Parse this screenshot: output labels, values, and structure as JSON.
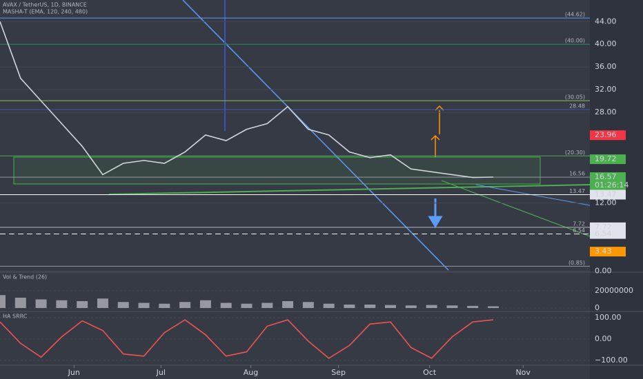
{
  "chart_data": [
    {
      "type": "line",
      "title": "AVAX / TetherUS, 1D, BINANCE",
      "subtitle": "MASHA-T (EMA, 120, 240, 480)",
      "x": [
        0,
        1,
        2,
        3,
        4,
        5,
        6,
        7,
        8,
        9,
        10,
        11,
        12,
        13,
        14,
        15,
        16,
        17,
        18,
        19,
        20,
        21,
        22,
        23,
        24
      ],
      "series": [
        {
          "name": "AVAX",
          "color": "#d1d4dc",
          "values": [
            44,
            34,
            30,
            26,
            22,
            17,
            19,
            19.5,
            19,
            21,
            24,
            23,
            25,
            26,
            29,
            25,
            24,
            21,
            20,
            20.5,
            18,
            17.5,
            17,
            16.5,
            16.57
          ]
        }
      ],
      "xlim": [
        0,
        28.7
      ],
      "ylim": [
        -0.2,
        47.8
      ],
      "yticks": [
        {
          "value": 44,
          "label": "44.00"
        },
        {
          "value": 40,
          "label": "40.00"
        },
        {
          "value": 36,
          "label": "36.00"
        },
        {
          "value": 32,
          "label": "32.00"
        },
        {
          "value": 28,
          "label": "28.00"
        },
        {
          "value": 12,
          "label": "12.00"
        },
        {
          "value": 0,
          "label": "0.00"
        }
      ],
      "levels": [
        {
          "value": 44.62,
          "label": "(44.62)",
          "color": "#5b9cf6"
        },
        {
          "value": 40,
          "label": "(40.00)",
          "color": "#1e8a5a"
        },
        {
          "value": 30.05,
          "label": "(30.05)",
          "color": "#8bc34a"
        },
        {
          "value": 28.48,
          "color": "#3f51b5"
        },
        {
          "value": 20.3,
          "label": "(20.30)",
          "color": "#4caf50"
        },
        {
          "value": 16.56,
          "color": "#9598a1"
        },
        {
          "value": 13.47,
          "color": "#ffffff"
        },
        {
          "value": 7.72,
          "color": "#b2b5be"
        },
        {
          "value": 6.54,
          "color": "#ffffff"
        },
        {
          "value": 0.85,
          "label": "(0.85)",
          "color": "#9598a1"
        }
      ],
      "badges": [
        {
          "value": 23.96,
          "color": "#f23645",
          "text_color": "#ffffff"
        },
        {
          "value": 19.72,
          "color": "#4caf50",
          "text_color": "#ffffff"
        },
        {
          "value": 16.57,
          "color": "#4caf50",
          "text_color": "#ffffff",
          "countdown": "01:26:14"
        },
        {
          "value": 13.47,
          "color": "#e0e3eb",
          "text_color": "#131722"
        },
        {
          "value": 7.72,
          "color": "#e0e3eb",
          "text_color": "#131722"
        },
        {
          "value": 6.54,
          "color": "#e0e3eb",
          "text_color": "#131722"
        },
        {
          "value": 3.43,
          "color": "#ff9800",
          "text_color": "#131722"
        }
      ]
    },
    {
      "type": "bar",
      "title": "Vol & Trend (26)",
      "x": [
        0,
        1,
        2,
        3,
        4,
        5,
        6,
        7,
        8,
        9,
        10,
        11,
        12,
        13,
        14,
        15,
        16,
        17,
        18,
        19,
        20,
        21,
        22,
        23,
        24
      ],
      "values": [
        15000000,
        12000000,
        10000000,
        9000000,
        8000000,
        11000000,
        7000000,
        6000000,
        5000000,
        7000000,
        9000000,
        6000000,
        5000000,
        6000000,
        8000000,
        7000000,
        5000000,
        4000000,
        4000000,
        3500000,
        3000000,
        3500000,
        3000000,
        2500000,
        2000000
      ],
      "color": "#9598a1",
      "xlim": [
        0,
        28.7
      ],
      "ylim": [
        -4000000,
        41600000
      ],
      "yticks": [
        20000000,
        0
      ]
    },
    {
      "type": "line",
      "title": "HA SRRC",
      "x": [
        0,
        1,
        2,
        3,
        4,
        5,
        6,
        7,
        8,
        9,
        10,
        11,
        12,
        13,
        14,
        15,
        16,
        17,
        18,
        19,
        20,
        21,
        22,
        23,
        24
      ],
      "series": [
        {
          "name": "SRRC",
          "color": "#ef5350",
          "values": [
            80,
            -20,
            -85,
            10,
            85,
            40,
            -70,
            -80,
            30,
            90,
            20,
            -80,
            -60,
            60,
            90,
            -10,
            -90,
            -30,
            70,
            80,
            -40,
            -90,
            10,
            80,
            90
          ]
        }
      ],
      "xlim": [
        0,
        28.7
      ],
      "ylim": [
        -122.6,
        129
      ],
      "yticks": [
        {
          "value": 100,
          "label": "100.00"
        },
        {
          "value": 0,
          "label": "0.00"
        },
        {
          "value": -100,
          "label": "−100.00"
        }
      ],
      "xticks": [
        {
          "value": 3.6,
          "label": "Jun"
        },
        {
          "value": 7.83,
          "label": "Jul"
        },
        {
          "value": 12.2,
          "label": "Aug"
        },
        {
          "value": 16.47,
          "label": "Sep"
        },
        {
          "value": 20.9,
          "label": "Oct"
        },
        {
          "value": 25.45,
          "label": "Nov"
        }
      ]
    }
  ]
}
